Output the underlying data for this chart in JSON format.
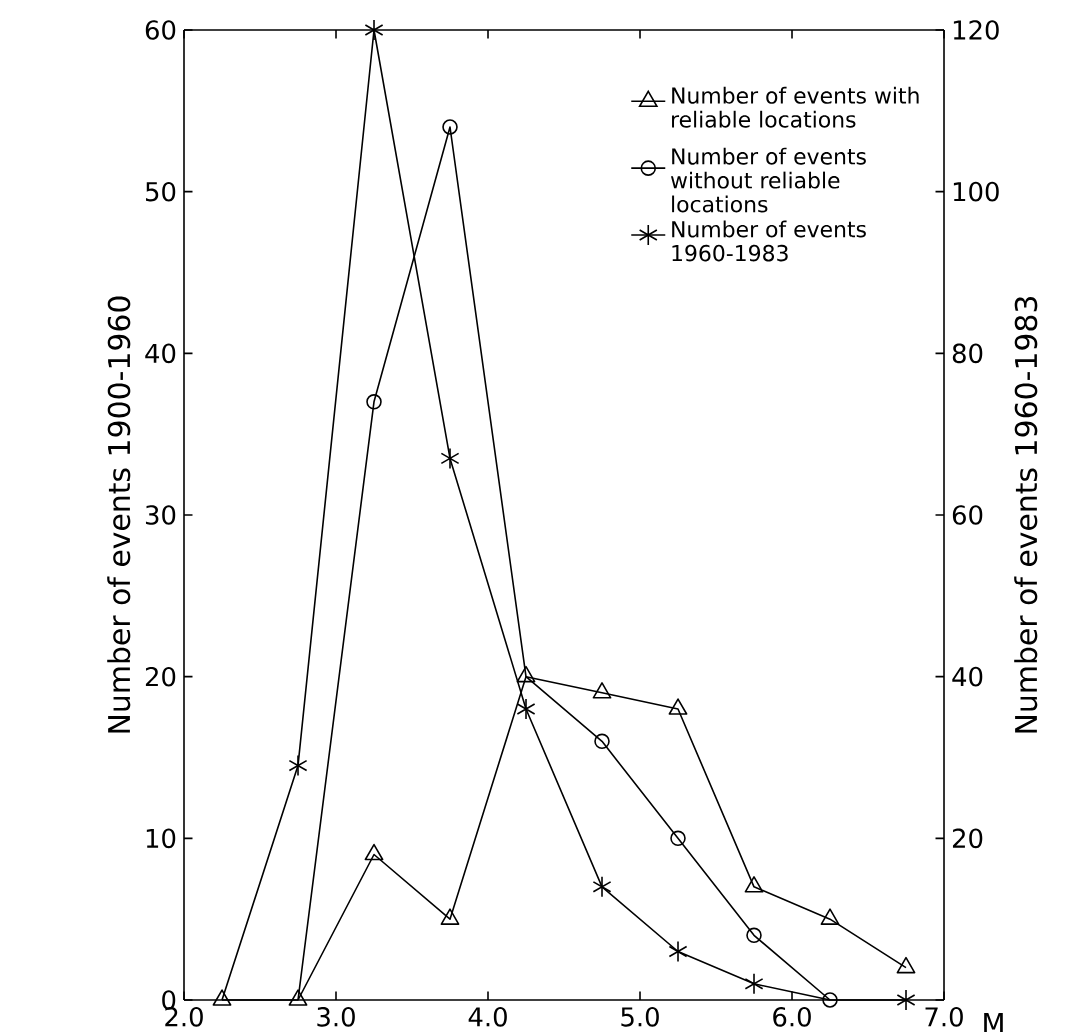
{
  "chart_data": {
    "type": "line",
    "xlabel": "M",
    "ylabel": "Number of events  1900-1960",
    "y2label": "Number of events  1960-1983",
    "x": [
      2.25,
      2.75,
      3.25,
      3.75,
      4.25,
      4.75,
      5.25,
      5.75,
      6.25,
      6.75
    ],
    "series": [
      {
        "name": "Number of events with reliable locations",
        "color": "#000000",
        "marker": "triangle",
        "values": [
          0,
          0,
          9,
          5,
          20,
          19,
          18,
          7,
          5,
          2
        ]
      },
      {
        "name": "Number of events without reliable locations",
        "color": "#000000",
        "marker": "circle",
        "values": [
          null,
          0,
          37,
          54,
          20,
          16,
          10,
          4,
          0,
          null
        ]
      },
      {
        "name": "Number of events 1960-1983",
        "color": "#000000",
        "marker": "cross",
        "axis": "y2",
        "values": [
          0,
          29,
          120,
          67,
          36,
          14,
          6,
          2,
          0,
          0
        ]
      }
    ],
    "xlim": [
      2,
      7
    ],
    "xticks": [
      {
        "value": 2,
        "label": "2.0"
      },
      {
        "value": 3,
        "label": "3.0"
      },
      {
        "value": 4,
        "label": "4.0"
      },
      {
        "value": 5,
        "label": "5.0"
      },
      {
        "value": 6,
        "label": "6.0"
      },
      {
        "value": 7,
        "label": "7.0"
      }
    ],
    "ylim": [
      0,
      60
    ],
    "yticks": [
      0,
      10,
      20,
      30,
      40,
      50,
      60
    ],
    "y2lim": [
      0,
      120
    ],
    "y2ticks": [
      {
        "value": 0,
        "label": null
      },
      20,
      40,
      60,
      80,
      100,
      120
    ],
    "grid": false,
    "legend": "top right",
    "line_style": "solid"
  }
}
